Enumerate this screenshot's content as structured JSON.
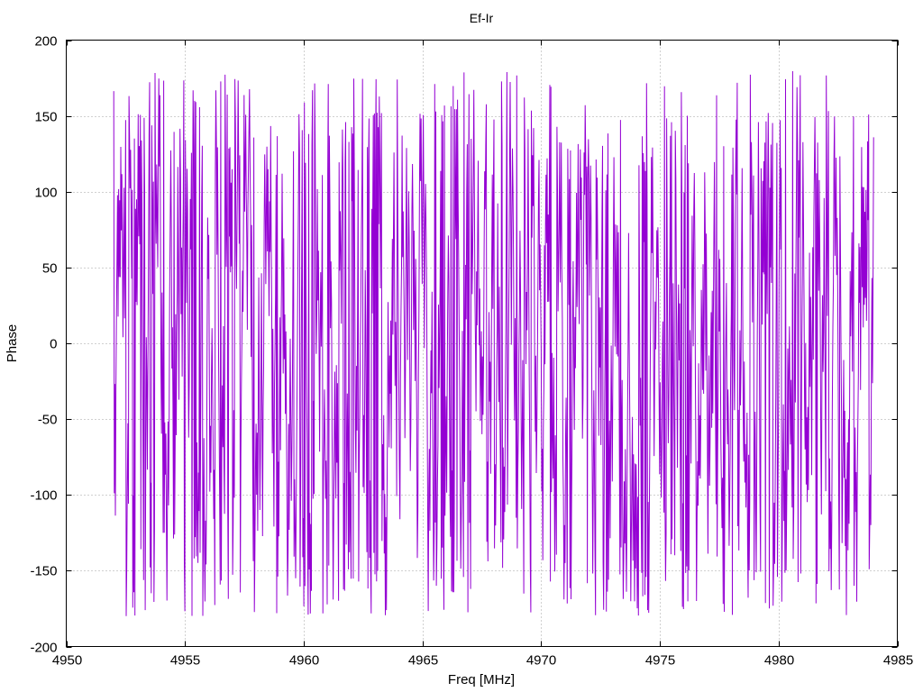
{
  "chart_data": {
    "type": "line",
    "title": "Ef-Ir",
    "xlabel": "Freq [MHz]",
    "ylabel": "Phase",
    "xlim": [
      4950,
      4985
    ],
    "ylim": [
      -200,
      200
    ],
    "x_ticks": [
      4950,
      4955,
      4960,
      4965,
      4970,
      4975,
      4980,
      4985
    ],
    "y_ticks": [
      -200,
      -150,
      -100,
      -50,
      0,
      50,
      100,
      150,
      200
    ],
    "x_tick_labels": [
      "4950",
      "4955",
      "4960",
      "4965",
      "4970",
      "4975",
      "4980",
      "4985"
    ],
    "y_tick_labels": [
      "-200",
      "-150",
      "-100",
      "-50",
      "0",
      "50",
      "100",
      "150",
      "200"
    ],
    "grid": true,
    "legend": "none",
    "series": [
      {
        "color": "#9400d3",
        "x_start": 4952.0,
        "x_end": 4984.0,
        "note_style": "phase wrapping between -180 and 180",
        "y_range": [
          -180,
          180
        ]
      }
    ]
  }
}
